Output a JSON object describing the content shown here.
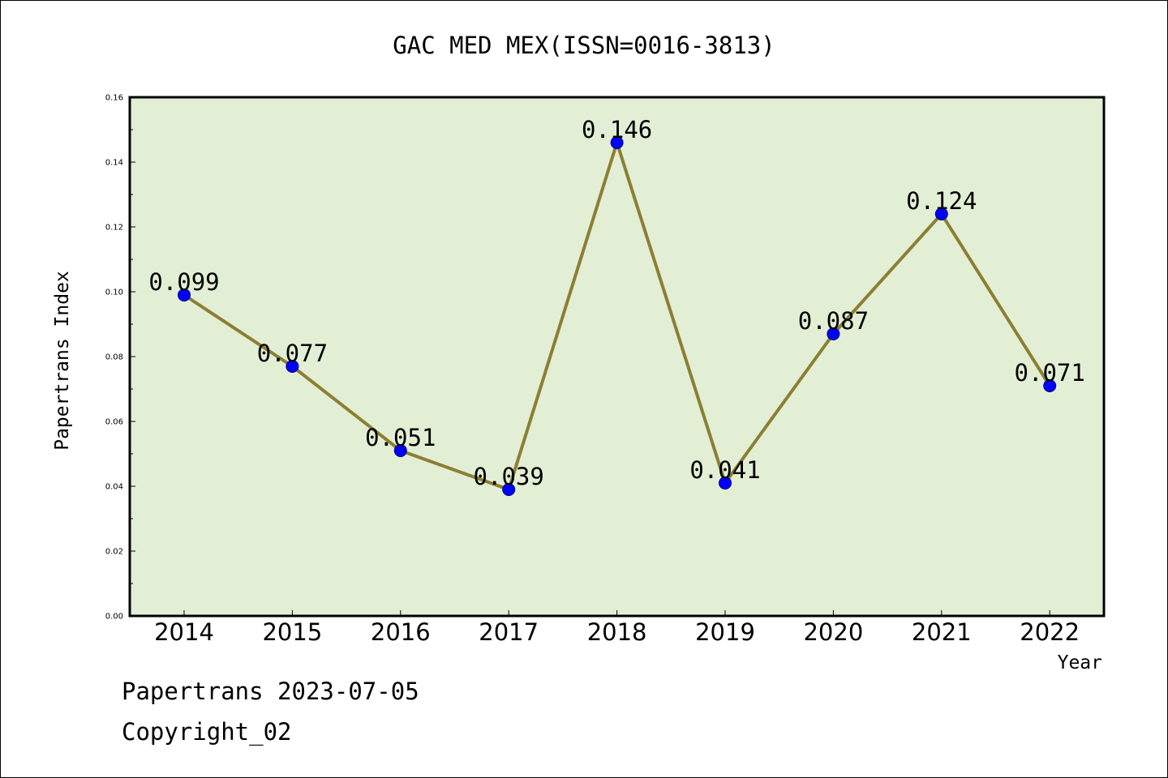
{
  "chart_data": {
    "type": "line",
    "title": "GAC MED MEX(ISSN=0016-3813)",
    "xlabel": "Year",
    "ylabel": "Papertrans Index",
    "categories": [
      "2014",
      "2015",
      "2016",
      "2017",
      "2018",
      "2019",
      "2020",
      "2021",
      "2022"
    ],
    "series": [
      {
        "values": [
          0.099,
          0.077,
          0.051,
          0.039,
          0.146,
          0.041,
          0.087,
          0.124,
          0.071
        ]
      }
    ],
    "data_labels": [
      "0.099",
      "0.077",
      "0.051",
      "0.039",
      "0.146",
      "0.041",
      "0.087",
      "0.124",
      "0.071"
    ],
    "ylim": [
      0,
      0.16
    ],
    "yticks": [
      "0.00",
      "0.02",
      "0.04",
      "0.06",
      "0.08",
      "0.10",
      "0.12",
      "0.14",
      "0.16"
    ],
    "grid": false,
    "legend": "none",
    "colors": {
      "plot_background": "#e2efd5",
      "line": "#8b7f34",
      "marker": "#0000ff"
    }
  },
  "footer": {
    "line1": "Papertrans 2023-07-05",
    "line2": "Copyright_02"
  }
}
